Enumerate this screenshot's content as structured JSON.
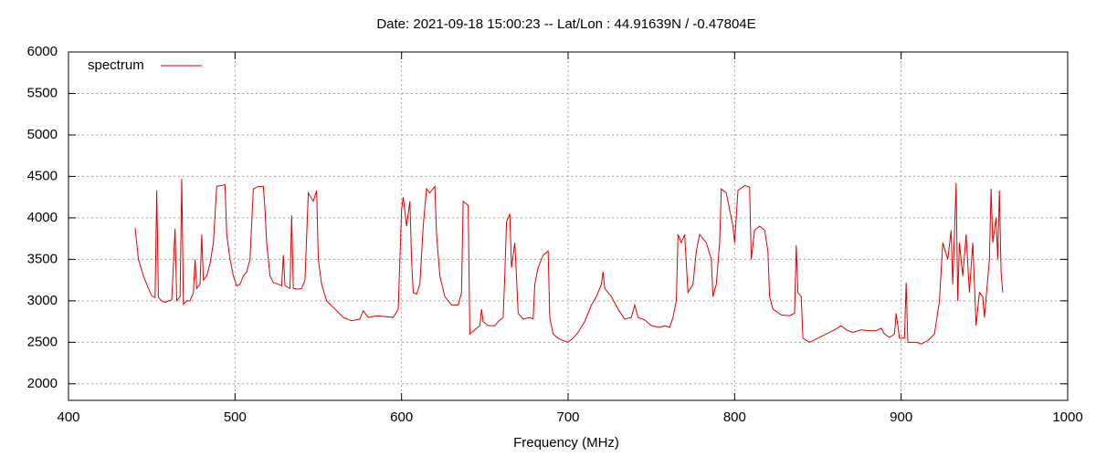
{
  "chart_data": {
    "type": "line",
    "title": "Date: 2021-09-18 15:00:23  --  Lat/Lon : 44.91639N / -0.47804E",
    "xlabel": "Frequency (MHz)",
    "xlim": [
      400,
      1000
    ],
    "xticks": [
      400,
      500,
      600,
      700,
      800,
      900,
      1000
    ],
    "ylim": [
      1800,
      6000
    ],
    "yticks": [
      2000,
      2500,
      3000,
      3500,
      4000,
      4500,
      5000,
      5500,
      6000
    ],
    "grid": true,
    "legend": "upper left",
    "series": [
      {
        "name": "spectrum",
        "color": "#e00000",
        "x": [
          440,
          442,
          445,
          448,
          450,
          452,
          453,
          454,
          456,
          458,
          460,
          462,
          464,
          465,
          467,
          468,
          469,
          471,
          473,
          475,
          476,
          477,
          479,
          480,
          481,
          483,
          485,
          487,
          489,
          492,
          494,
          495,
          497,
          499,
          501,
          503,
          505,
          507,
          509,
          511,
          514,
          517,
          518,
          519,
          521,
          523,
          526,
          528,
          529,
          530,
          533,
          534,
          535,
          538,
          540,
          542,
          544,
          547,
          549,
          550,
          552,
          555,
          560,
          565,
          570,
          575,
          577,
          580,
          585,
          590,
          595,
          598,
          600,
          601,
          603,
          605,
          606,
          607,
          609,
          611,
          613,
          615,
          617,
          620,
          621,
          623,
          626,
          630,
          634,
          636,
          637,
          640,
          641,
          644,
          647,
          648,
          649,
          652,
          656,
          658,
          661,
          662,
          663,
          665,
          666,
          668,
          669,
          670,
          673,
          677,
          679,
          680,
          682,
          685,
          688,
          689,
          691,
          694,
          697,
          700,
          703,
          706,
          710,
          714,
          717,
          720,
          721,
          722,
          726,
          730,
          734,
          738,
          740,
          742,
          746,
          750,
          755,
          758,
          761,
          763,
          765,
          766,
          768,
          770,
          772,
          775,
          777,
          779,
          783,
          786,
          787,
          789,
          791,
          792,
          795,
          797,
          799,
          800,
          802,
          806,
          809,
          810,
          812,
          815,
          818,
          820,
          821,
          823,
          828,
          833,
          836,
          837,
          838,
          840,
          841,
          845,
          850,
          855,
          860,
          864,
          867,
          871,
          876,
          880,
          885,
          888,
          890,
          893,
          896,
          897,
          899,
          902,
          903,
          904,
          909,
          912,
          916,
          920,
          923,
          925,
          928,
          930,
          931,
          933,
          934,
          935,
          937,
          939,
          941,
          943,
          945,
          947,
          949,
          950,
          953,
          954,
          955,
          957,
          958,
          959,
          960,
          961
        ],
        "values": [
          3880,
          3500,
          3300,
          3150,
          3060,
          3040,
          4330,
          3040,
          3000,
          2980,
          3000,
          3010,
          3870,
          3000,
          3050,
          4470,
          2960,
          3000,
          3000,
          3100,
          3500,
          3150,
          3200,
          3800,
          3250,
          3300,
          3450,
          3700,
          4380,
          4390,
          4400,
          3800,
          3500,
          3300,
          3180,
          3200,
          3300,
          3350,
          3500,
          4350,
          4380,
          4380,
          4100,
          3700,
          3300,
          3220,
          3200,
          3180,
          3550,
          3180,
          3150,
          4030,
          3150,
          3140,
          3150,
          3250,
          4300,
          4200,
          4330,
          3500,
          3200,
          3000,
          2900,
          2800,
          2760,
          2780,
          2880,
          2800,
          2820,
          2810,
          2800,
          2900,
          4100,
          4250,
          3900,
          4200,
          3500,
          3100,
          3080,
          3200,
          3900,
          4350,
          4300,
          4380,
          3800,
          3300,
          3050,
          2950,
          2950,
          3100,
          4200,
          4150,
          2600,
          2650,
          2700,
          2900,
          2750,
          2700,
          2700,
          2750,
          2800,
          3300,
          3950,
          4050,
          3400,
          3700,
          3300,
          2850,
          2780,
          2800,
          2780,
          3200,
          3400,
          3550,
          3600,
          2800,
          2600,
          2550,
          2520,
          2500,
          2550,
          2620,
          2750,
          2950,
          3050,
          3200,
          3350,
          3150,
          3050,
          2900,
          2780,
          2800,
          2950,
          2800,
          2770,
          2700,
          2680,
          2700,
          2680,
          2800,
          3000,
          3800,
          3700,
          3800,
          3100,
          3200,
          3600,
          3800,
          3700,
          3500,
          3050,
          3200,
          3700,
          4350,
          4300,
          4100,
          3900,
          3700,
          4330,
          4390,
          4370,
          3500,
          3850,
          3900,
          3850,
          3600,
          3050,
          2900,
          2830,
          2820,
          2850,
          3670,
          3100,
          3050,
          2550,
          2500,
          2550,
          2600,
          2650,
          2700,
          2650,
          2620,
          2650,
          2640,
          2640,
          2670,
          2600,
          2560,
          2600,
          2850,
          2550,
          2550,
          3220,
          2500,
          2500,
          2480,
          2520,
          2600,
          3000,
          3700,
          3500,
          3850,
          3200,
          4420,
          3000,
          3700,
          3300,
          3800,
          3100,
          3700,
          2700,
          3100,
          3050,
          2800,
          3500,
          4350,
          3700,
          4000,
          3500,
          4330,
          3350,
          3100
        ]
      }
    ]
  }
}
